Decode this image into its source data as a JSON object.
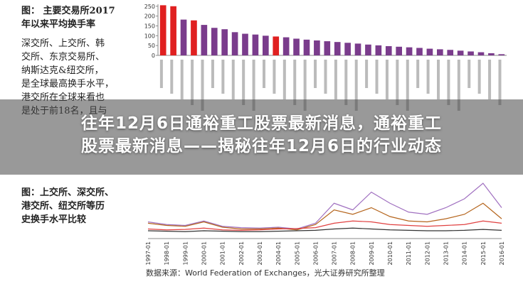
{
  "top_text": {
    "title_lines": [
      "图： 主要交易所2017",
      "年以来平均换手率"
    ],
    "lines": [
      "深交所、上交所、韩",
      "交所、东京交易所、",
      "纳斯达克&纽交所，",
      "是全球最高换手水平，",
      "港交所在全球来看也",
      "是处于前18名，且与"
    ]
  },
  "bottom_text": {
    "lines": [
      "图：上交所、深交所、",
      "港交所、纽交所等历",
      "史换手水平比较"
    ]
  },
  "headline": {
    "lines": [
      "往年12月6日通裕重工股票最新消息，通裕重工",
      "股票最新消息——揭秘往年12月6日的行业动态"
    ]
  },
  "source": "数据来源：World Federation of Exchanges，光大证券研究所整理",
  "chart_data": [
    {
      "type": "bar",
      "values": [
        255,
        250,
        182,
        178,
        155,
        140,
        133,
        118,
        110,
        106,
        100,
        96,
        92,
        85,
        80,
        76,
        72,
        68,
        64,
        60,
        55,
        51,
        47,
        44,
        41,
        38,
        34,
        31,
        28,
        24,
        20,
        16,
        11,
        6
      ],
      "colors": [
        "#e02020",
        "#e02020",
        "#7a3c8c",
        "#e02020",
        "#7a3c8c",
        "#7a3c8c",
        "#7a3c8c",
        "#7a3c8c",
        "#7a3c8c",
        "#7a3c8c",
        "#7a3c8c",
        "#e02020",
        "#7a3c8c",
        "#7a3c8c",
        "#7a3c8c",
        "#7a3c8c",
        "#7a3c8c",
        "#7a3c8c",
        "#7a3c8c",
        "#7a3c8c",
        "#7a3c8c",
        "#7a3c8c",
        "#7a3c8c",
        "#7a3c8c",
        "#7a3c8c",
        "#7a3c8c",
        "#7a3c8c",
        "#7a3c8c",
        "#7a3c8c",
        "#7a3c8c",
        "#7a3c8c",
        "#7a3c8c",
        "#7a3c8c",
        "#7a3c8c"
      ],
      "ylim": [
        0,
        260
      ],
      "yticks": [
        0,
        50,
        100,
        150,
        200,
        250
      ]
    },
    {
      "type": "line",
      "categories": [
        "1997-01",
        "1998-01",
        "1999-01",
        "2000-01",
        "2001-01",
        "2002-01",
        "2003-01",
        "2004-01",
        "2005-01",
        "2006-01",
        "2007-01",
        "2008-01",
        "2009-01",
        "2010-01",
        "2011-01",
        "2012-01",
        "2013-01",
        "2014-01",
        "2015-01",
        "2016-01"
      ],
      "ylim": [
        0,
        120
      ],
      "series": [
        {
          "color": "#a070c0",
          "values": [
            28,
            22,
            20,
            30,
            18,
            15,
            14,
            16,
            12,
            25,
            70,
            55,
            95,
            70,
            50,
            45,
            60,
            80,
            115,
            60
          ]
        },
        {
          "color": "#b5651d",
          "values": [
            25,
            20,
            18,
            28,
            16,
            12,
            12,
            14,
            10,
            22,
            55,
            45,
            60,
            40,
            30,
            28,
            35,
            45,
            70,
            35
          ]
        },
        {
          "color": "#e04040",
          "values": [
            12,
            10,
            11,
            14,
            10,
            9,
            10,
            12,
            13,
            15,
            25,
            30,
            28,
            22,
            20,
            18,
            20,
            22,
            30,
            25
          ]
        },
        {
          "color": "#333333",
          "values": [
            8,
            7,
            6,
            8,
            7,
            6,
            6,
            7,
            8,
            9,
            12,
            14,
            12,
            10,
            9,
            8,
            8,
            9,
            11,
            9
          ]
        }
      ]
    }
  ]
}
